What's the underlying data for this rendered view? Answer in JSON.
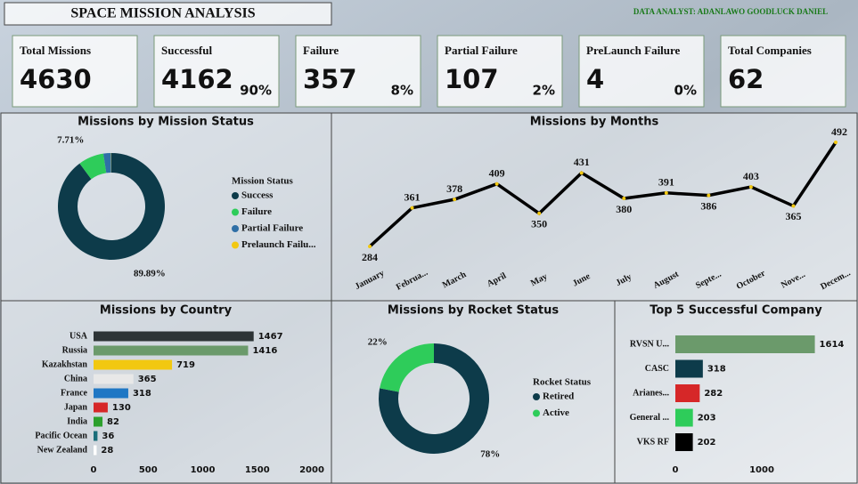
{
  "header": {
    "title": "SPACE MISSION ANALYSIS",
    "analyst": "DATA ANALYST: ADANLAWO GOODLUCK DANIEL"
  },
  "kpis": [
    {
      "label": "Total Missions",
      "value": 4630
    },
    {
      "label": "Successful",
      "value": 4162,
      "percent": "90%"
    },
    {
      "label": "Failure",
      "value": 357,
      "percent": "8%"
    },
    {
      "label": "Partial Failure",
      "value": 107,
      "percent": "2%"
    },
    {
      "label": "PreLaunch Failure",
      "value": 4,
      "percent": "0%"
    },
    {
      "label": "Total Companies",
      "value": 62
    }
  ],
  "chart_data": [
    {
      "type": "donut",
      "title": "Missions by Mission Status",
      "legend_title": "Mission Status",
      "categories": [
        "Success",
        "Failure",
        "Partial Failure",
        "Prelaunch Failu..."
      ],
      "values": [
        89.89,
        7.71,
        2.31,
        0.09
      ],
      "value_labels": [
        "89.89%",
        "7.71%",
        null,
        null
      ],
      "colors": [
        "#0d3b4a",
        "#2ecc5a",
        "#2f6fa6",
        "#f2c811"
      ]
    },
    {
      "type": "line",
      "title": "Missions by Months",
      "categories": [
        "January",
        "Februa...",
        "March",
        "April",
        "May",
        "June",
        "July",
        "August",
        "Septe...",
        "October",
        "Nove...",
        "Decem..."
      ],
      "values": [
        284,
        361,
        378,
        409,
        350,
        431,
        380,
        391,
        386,
        403,
        365,
        492
      ],
      "color": "#000000"
    },
    {
      "type": "hbar",
      "title": "Missions by Country",
      "categories": [
        "USA",
        "Russia",
        "Kazakhstan",
        "China",
        "France",
        "Japan",
        "India",
        "Pacific Ocean",
        "New Zealand"
      ],
      "values": [
        1467,
        1416,
        719,
        365,
        318,
        130,
        82,
        36,
        28
      ],
      "colors": [
        "#2d3436",
        "#6b9a6b",
        "#f2c811",
        "#e8e8e8",
        "#1f77c4",
        "#d62728",
        "#2ca02c",
        "#1a6e7a",
        "#ffffff"
      ],
      "xlim": [
        0,
        2000
      ],
      "xticks": [
        0,
        500,
        1000,
        1500,
        2000
      ]
    },
    {
      "type": "donut",
      "title": "Missions by Rocket Status",
      "legend_title": "Rocket Status",
      "categories": [
        "Retired",
        "Active"
      ],
      "values": [
        78,
        22
      ],
      "value_labels": [
        "78%",
        "22%"
      ],
      "colors": [
        "#0d3b4a",
        "#2ecc5a"
      ]
    },
    {
      "type": "hbar",
      "title": "Top 5 Successful Company",
      "categories": [
        "RVSN U...",
        "CASC",
        "Arianes...",
        "General ...",
        "VKS RF"
      ],
      "values": [
        1614,
        318,
        282,
        203,
        202
      ],
      "colors": [
        "#6b9a6b",
        "#0d3b4a",
        "#d62728",
        "#2ecc5a",
        "#000000"
      ],
      "xlim": [
        0,
        2000
      ],
      "xticks": [
        0,
        1000
      ]
    }
  ]
}
